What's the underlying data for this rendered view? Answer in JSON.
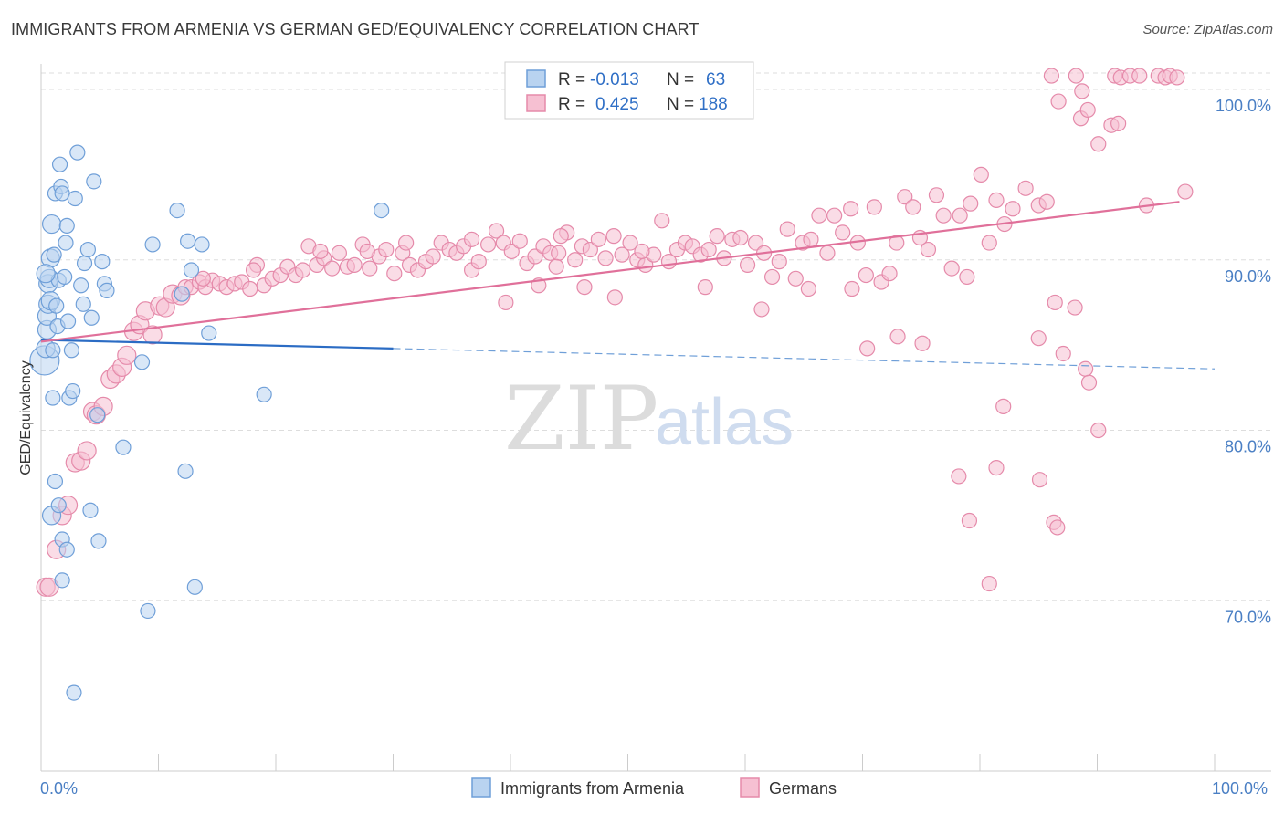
{
  "title": "IMMIGRANTS FROM ARMENIA VS GERMAN GED/EQUIVALENCY CORRELATION CHART",
  "source": "Source: ZipAtlas.com",
  "watermark": {
    "zip": "ZIP",
    "atlas": "atlas"
  },
  "colors": {
    "blue_fill": "#b9d3f0",
    "blue_stroke": "#6f9fd8",
    "blue_line": "#2b6cc4",
    "pink_fill": "#f6c0d2",
    "pink_stroke": "#e58aaa",
    "pink_line": "#e0709a",
    "tick_text": "#4a7fc4",
    "grid": "#dddddd"
  },
  "legend": {
    "rows": [
      {
        "r_label": "R =",
        "r_value": "-0.013",
        "n_label": "N =",
        "n_value": "63",
        "series": "blue"
      },
      {
        "r_label": "R =",
        "r_value": "0.425",
        "n_label": "N =",
        "n_value": "188",
        "series": "pink"
      }
    ]
  },
  "bottom_legend": [
    "Immigrants from Armenia",
    "Germans"
  ],
  "chart_data": {
    "type": "scatter",
    "title": "IMMIGRANTS FROM ARMENIA VS GERMAN GED/EQUIVALENCY CORRELATION CHART",
    "xlabel": "",
    "ylabel": "GED/Equivalency",
    "xlim": [
      0,
      100
    ],
    "ylim": [
      60,
      101.5
    ],
    "x_ticks": [
      "0.0%",
      "100.0%"
    ],
    "y_ticks": [
      {
        "value": 70,
        "label": "70.0%"
      },
      {
        "value": 80,
        "label": "80.0%"
      },
      {
        "value": 90,
        "label": "90.0%"
      },
      {
        "value": 100,
        "label": "100.0%"
      }
    ],
    "grid": true,
    "legend_position": "top-center",
    "series": [
      {
        "name": "Immigrants from Armenia",
        "color": "#6f9fd8",
        "R": -0.013,
        "N": 63,
        "trend": {
          "x0": 0,
          "y0": 85.3,
          "x1": 30,
          "y1": 84.8,
          "dashed_to_x": 100,
          "dashed_to_y": 83.6
        },
        "points": [
          [
            0.3,
            84.1
          ],
          [
            0.4,
            84.8
          ],
          [
            0.5,
            85.9
          ],
          [
            0.5,
            86.7
          ],
          [
            0.6,
            87.4
          ],
          [
            0.6,
            88.6
          ],
          [
            0.7,
            88.9
          ],
          [
            0.8,
            87.6
          ],
          [
            0.8,
            90.1
          ],
          [
            0.9,
            92.1
          ],
          [
            1.0,
            84.7
          ],
          [
            1.1,
            90.3
          ],
          [
            1.2,
            93.9
          ],
          [
            1.3,
            87.3
          ],
          [
            1.4,
            86.1
          ],
          [
            1.5,
            88.8
          ],
          [
            1.7,
            94.3
          ],
          [
            1.8,
            93.9
          ],
          [
            2.0,
            89.0
          ],
          [
            2.1,
            91.0
          ],
          [
            2.2,
            92.0
          ],
          [
            2.3,
            86.4
          ],
          [
            2.6,
            84.7
          ],
          [
            2.9,
            93.6
          ],
          [
            3.1,
            96.3
          ],
          [
            3.4,
            88.5
          ],
          [
            3.6,
            87.4
          ],
          [
            3.7,
            89.8
          ],
          [
            4.0,
            90.6
          ],
          [
            4.3,
            86.6
          ],
          [
            4.5,
            94.6
          ],
          [
            5.2,
            89.9
          ],
          [
            5.4,
            88.6
          ],
          [
            5.6,
            88.2
          ],
          [
            1.0,
            81.9
          ],
          [
            2.4,
            81.9
          ],
          [
            2.7,
            82.3
          ],
          [
            4.8,
            80.9
          ],
          [
            7.0,
            79.0
          ],
          [
            8.6,
            84.0
          ],
          [
            11.6,
            92.9
          ],
          [
            13.7,
            90.9
          ],
          [
            12.5,
            91.1
          ],
          [
            12.8,
            89.4
          ],
          [
            14.3,
            85.7
          ],
          [
            12.3,
            77.6
          ],
          [
            19.0,
            82.1
          ],
          [
            29.0,
            92.9
          ],
          [
            0.9,
            75.0
          ],
          [
            1.2,
            77.0
          ],
          [
            1.5,
            75.6
          ],
          [
            1.8,
            71.2
          ],
          [
            1.8,
            73.6
          ],
          [
            2.2,
            73.0
          ],
          [
            4.2,
            75.3
          ],
          [
            4.9,
            73.5
          ],
          [
            9.1,
            69.4
          ],
          [
            13.1,
            70.8
          ],
          [
            2.8,
            64.6
          ],
          [
            9.5,
            90.9
          ],
          [
            1.6,
            95.6
          ],
          [
            0.4,
            89.2
          ],
          [
            12.0,
            88.0
          ]
        ]
      },
      {
        "name": "Germans",
        "color": "#e58aaa",
        "R": 0.425,
        "N": 188,
        "trend": {
          "x0": 0,
          "y0": 85.2,
          "x1": 97,
          "y1": 93.4
        },
        "points": [
          [
            0.4,
            70.8
          ],
          [
            0.7,
            70.8
          ],
          [
            1.3,
            73.0
          ],
          [
            1.8,
            75.0
          ],
          [
            2.3,
            75.6
          ],
          [
            2.9,
            78.1
          ],
          [
            3.4,
            78.2
          ],
          [
            3.9,
            78.8
          ],
          [
            4.4,
            81.1
          ],
          [
            4.7,
            80.9
          ],
          [
            5.3,
            81.4
          ],
          [
            5.9,
            83.0
          ],
          [
            6.4,
            83.3
          ],
          [
            6.9,
            83.7
          ],
          [
            7.3,
            84.4
          ],
          [
            7.9,
            85.8
          ],
          [
            8.4,
            86.2
          ],
          [
            8.9,
            87.0
          ],
          [
            9.5,
            85.6
          ],
          [
            10.1,
            87.3
          ],
          [
            10.6,
            87.2
          ],
          [
            11.2,
            88.0
          ],
          [
            11.9,
            87.9
          ],
          [
            12.3,
            88.4
          ],
          [
            12.8,
            88.4
          ],
          [
            13.5,
            88.7
          ],
          [
            14.0,
            88.4
          ],
          [
            14.6,
            88.8
          ],
          [
            15.2,
            88.6
          ],
          [
            15.8,
            88.4
          ],
          [
            16.5,
            88.6
          ],
          [
            17.1,
            88.7
          ],
          [
            17.8,
            88.3
          ],
          [
            18.4,
            89.7
          ],
          [
            19.0,
            88.5
          ],
          [
            19.7,
            88.9
          ],
          [
            20.4,
            89.1
          ],
          [
            21.0,
            89.6
          ],
          [
            21.7,
            89.1
          ],
          [
            22.3,
            89.4
          ],
          [
            22.8,
            90.8
          ],
          [
            23.5,
            89.7
          ],
          [
            24.1,
            90.1
          ],
          [
            24.8,
            89.5
          ],
          [
            25.4,
            90.4
          ],
          [
            26.1,
            89.6
          ],
          [
            26.7,
            89.7
          ],
          [
            27.4,
            90.9
          ],
          [
            28.0,
            89.5
          ],
          [
            28.8,
            90.2
          ],
          [
            29.4,
            90.6
          ],
          [
            30.1,
            89.2
          ],
          [
            30.8,
            90.4
          ],
          [
            31.4,
            89.7
          ],
          [
            32.1,
            89.4
          ],
          [
            32.8,
            89.9
          ],
          [
            33.4,
            90.2
          ],
          [
            34.1,
            91.0
          ],
          [
            34.8,
            90.6
          ],
          [
            35.4,
            90.4
          ],
          [
            36.0,
            90.8
          ],
          [
            36.7,
            89.4
          ],
          [
            37.3,
            89.9
          ],
          [
            38.1,
            90.9
          ],
          [
            38.8,
            91.7
          ],
          [
            39.4,
            91.0
          ],
          [
            40.1,
            90.5
          ],
          [
            40.8,
            91.1
          ],
          [
            41.4,
            89.8
          ],
          [
            42.1,
            90.2
          ],
          [
            42.8,
            90.8
          ],
          [
            43.4,
            90.4
          ],
          [
            44.1,
            90.4
          ],
          [
            44.8,
            91.6
          ],
          [
            45.5,
            90.0
          ],
          [
            46.1,
            90.8
          ],
          [
            46.8,
            90.6
          ],
          [
            47.5,
            91.2
          ],
          [
            48.1,
            90.1
          ],
          [
            48.8,
            91.4
          ],
          [
            49.5,
            90.3
          ],
          [
            50.2,
            91.0
          ],
          [
            50.8,
            90.0
          ],
          [
            51.5,
            89.7
          ],
          [
            52.2,
            90.3
          ],
          [
            52.9,
            92.3
          ],
          [
            53.5,
            89.9
          ],
          [
            54.2,
            90.6
          ],
          [
            54.9,
            91.0
          ],
          [
            55.5,
            90.8
          ],
          [
            56.2,
            90.3
          ],
          [
            56.9,
            90.6
          ],
          [
            57.6,
            91.4
          ],
          [
            58.2,
            90.1
          ],
          [
            58.9,
            91.2
          ],
          [
            59.6,
            91.3
          ],
          [
            60.2,
            89.7
          ],
          [
            60.9,
            91.0
          ],
          [
            61.6,
            90.4
          ],
          [
            62.3,
            89.0
          ],
          [
            62.9,
            89.9
          ],
          [
            63.6,
            91.8
          ],
          [
            64.3,
            88.9
          ],
          [
            64.9,
            91.0
          ],
          [
            65.6,
            91.2
          ],
          [
            66.3,
            92.6
          ],
          [
            67.0,
            90.4
          ],
          [
            67.6,
            92.6
          ],
          [
            68.3,
            91.6
          ],
          [
            69.0,
            93.0
          ],
          [
            69.6,
            91.0
          ],
          [
            70.3,
            89.1
          ],
          [
            71.0,
            93.1
          ],
          [
            71.6,
            88.7
          ],
          [
            72.3,
            89.2
          ],
          [
            72.9,
            91.0
          ],
          [
            73.6,
            93.7
          ],
          [
            74.3,
            93.1
          ],
          [
            74.9,
            91.3
          ],
          [
            75.6,
            90.6
          ],
          [
            76.3,
            93.8
          ],
          [
            76.9,
            92.6
          ],
          [
            77.6,
            89.5
          ],
          [
            78.3,
            92.6
          ],
          [
            78.9,
            89.0
          ],
          [
            39.6,
            87.5
          ],
          [
            42.4,
            88.5
          ],
          [
            43.9,
            89.6
          ],
          [
            46.3,
            88.4
          ],
          [
            48.9,
            87.8
          ],
          [
            56.6,
            88.4
          ],
          [
            61.4,
            87.1
          ],
          [
            65.4,
            88.3
          ],
          [
            69.1,
            88.3
          ],
          [
            70.4,
            84.8
          ],
          [
            73.0,
            85.5
          ],
          [
            75.1,
            85.1
          ],
          [
            79.2,
            93.3
          ],
          [
            80.1,
            95.0
          ],
          [
            80.8,
            91.0
          ],
          [
            81.4,
            93.5
          ],
          [
            82.1,
            92.1
          ],
          [
            82.8,
            93.0
          ],
          [
            83.9,
            94.2
          ],
          [
            85.0,
            93.2
          ],
          [
            85.7,
            93.4
          ],
          [
            86.4,
            87.5
          ],
          [
            87.1,
            84.5
          ],
          [
            88.1,
            87.2
          ],
          [
            89.0,
            83.6
          ],
          [
            89.3,
            82.8
          ],
          [
            90.1,
            80.0
          ],
          [
            85.0,
            85.4
          ],
          [
            82.0,
            81.4
          ],
          [
            81.4,
            77.8
          ],
          [
            79.1,
            74.7
          ],
          [
            78.2,
            77.3
          ],
          [
            80.8,
            71.0
          ],
          [
            85.1,
            77.1
          ],
          [
            86.3,
            74.6
          ],
          [
            86.6,
            74.3
          ],
          [
            88.6,
            98.3
          ],
          [
            90.1,
            96.8
          ],
          [
            91.2,
            97.9
          ],
          [
            91.8,
            98.0
          ],
          [
            86.1,
            100.8
          ],
          [
            86.7,
            99.3
          ],
          [
            88.2,
            100.8
          ],
          [
            88.7,
            99.9
          ],
          [
            89.2,
            98.8
          ],
          [
            91.5,
            100.8
          ],
          [
            92.0,
            100.7
          ],
          [
            92.8,
            100.8
          ],
          [
            93.6,
            100.8
          ],
          [
            95.2,
            100.8
          ],
          [
            95.8,
            100.7
          ],
          [
            96.2,
            100.8
          ],
          [
            96.8,
            100.7
          ],
          [
            97.5,
            94.0
          ],
          [
            94.2,
            93.2
          ],
          [
            13.8,
            88.9
          ],
          [
            18.1,
            89.4
          ],
          [
            23.8,
            90.5
          ],
          [
            27.8,
            90.5
          ],
          [
            31.1,
            91.0
          ],
          [
            36.7,
            91.2
          ],
          [
            44.3,
            91.4
          ],
          [
            51.2,
            90.5
          ]
        ]
      }
    ]
  }
}
